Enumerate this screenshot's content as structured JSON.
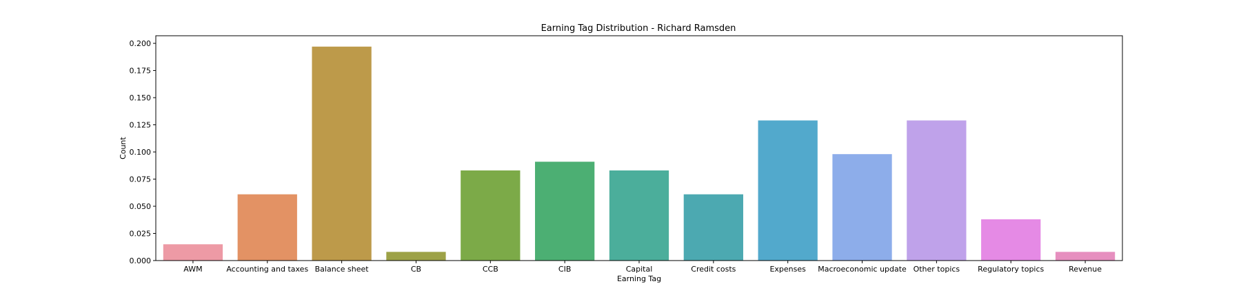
{
  "chart_data": {
    "type": "bar",
    "title": "Earning Tag Distribution - Richard Ramsden",
    "xlabel": "Earning Tag",
    "ylabel": "Count",
    "ylim": [
      0,
      0.207
    ],
    "yticks": [
      "0.000",
      "0.025",
      "0.050",
      "0.075",
      "0.100",
      "0.125",
      "0.150",
      "0.175",
      "0.200"
    ],
    "grid": false,
    "categories": [
      "AWM",
      "Accounting and taxes",
      "Balance sheet",
      "CB",
      "CCB",
      "CIB",
      "Capital",
      "Credit costs",
      "Expenses",
      "Macroeconomic update",
      "Other topics",
      "Regulatory topics",
      "Revenue"
    ],
    "values": [
      0.015,
      0.061,
      0.197,
      0.008,
      0.083,
      0.091,
      0.083,
      0.061,
      0.129,
      0.098,
      0.129,
      0.038,
      0.008
    ],
    "colors": [
      "#ed9aa5",
      "#e39264",
      "#bd9a4a",
      "#9da247",
      "#7caa48",
      "#4caf73",
      "#4bae9b",
      "#4ca9b1",
      "#52a9cc",
      "#8dadea",
      "#bfa2ea",
      "#e58ae5",
      "#e68fbf"
    ]
  }
}
